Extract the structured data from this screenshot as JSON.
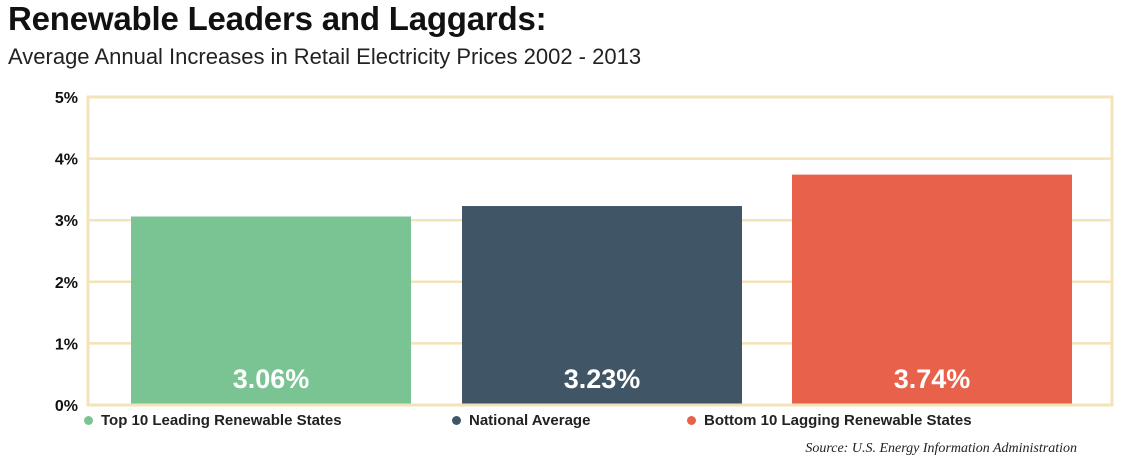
{
  "colors": {
    "frame": "#f3e3b8",
    "gridline": "#f3e3b8",
    "leaders": "#79c492",
    "national": "#405667",
    "laggards": "#e8614a"
  },
  "chart_data": {
    "type": "bar",
    "title": "Renewable Leaders and Laggards:",
    "subtitle": "Average Annual Increases in Retail Electricity Prices 2002 - 2013",
    "categories": [
      "Top 10 Leading Renewable States",
      "National Average",
      "Bottom 10 Lagging Renewable States"
    ],
    "values": [
      3.06,
      3.23,
      3.74
    ],
    "value_labels": [
      "3.06%",
      "3.23%",
      "3.74%"
    ],
    "colors": [
      "#79c492",
      "#405667",
      "#e8614a"
    ],
    "ylim": [
      0,
      5
    ],
    "yticks": [
      {
        "value": 0,
        "label": "0%"
      },
      {
        "value": 1,
        "label": "1%"
      },
      {
        "value": 2,
        "label": "2%"
      },
      {
        "value": 3,
        "label": "3%"
      },
      {
        "value": 4,
        "label": "4%"
      },
      {
        "value": 5,
        "label": "5%"
      }
    ],
    "xlabel": "",
    "ylabel": "",
    "grid": true,
    "legend": [
      {
        "label": "Top 10 Leading Renewable States",
        "color": "#79c492"
      },
      {
        "label": "National Average",
        "color": "#405667"
      },
      {
        "label": "Bottom 10 Lagging Renewable States",
        "color": "#e8614a"
      }
    ],
    "legend_position": "bottom",
    "source": "Source: U.S. Energy Information Administration"
  }
}
